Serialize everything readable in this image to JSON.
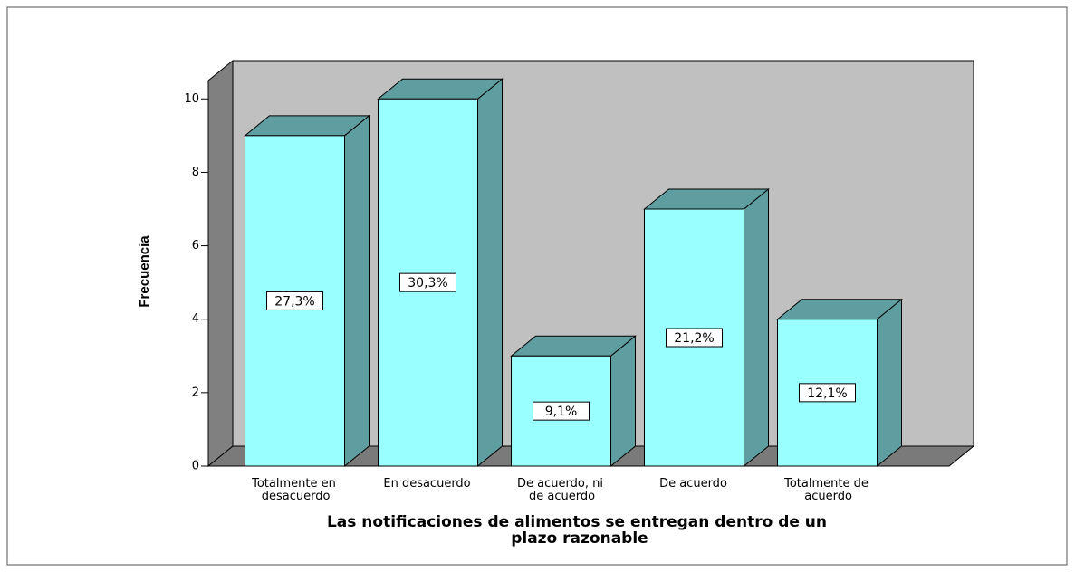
{
  "chart_data": {
    "type": "bar3d",
    "title": "Las notificaciones de alimentos se entregan dentro de un plazo razonable",
    "ylabel": "Frecuencia",
    "categories": [
      "Totalmente en desacuerdo",
      "En desacuerdo",
      "De acuerdo, ni de acuerdo",
      "De acuerdo",
      "Totalmente de acuerdo"
    ],
    "values": [
      9,
      10,
      3,
      7,
      4
    ],
    "percents": [
      27.3,
      30.3,
      9.1,
      21.2,
      12.1
    ],
    "percent_labels": [
      "27,3%",
      "30,3%",
      "9,1%",
      "21,2%",
      "12,1%"
    ],
    "color": "#99ffff",
    "ylim": [
      0,
      10.5
    ],
    "yticks": [
      0,
      2,
      4,
      6,
      8,
      10
    ]
  }
}
